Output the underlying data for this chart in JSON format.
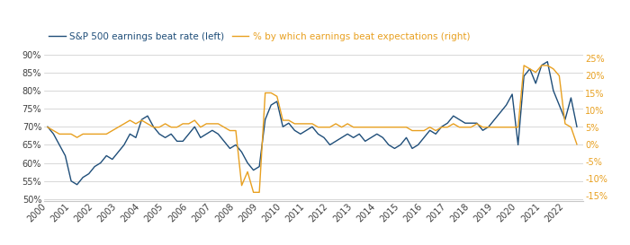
{
  "legend_blue": "S&P 500 earnings beat rate (left)",
  "legend_orange": "% by which earnings beat expectations (right)",
  "blue_color": "#1f4e79",
  "orange_color": "#e8a020",
  "left_ylim": [
    0.495,
    0.915
  ],
  "right_ylim": [
    -0.165,
    0.278
  ],
  "left_yticks": [
    0.5,
    0.55,
    0.6,
    0.65,
    0.7,
    0.75,
    0.8,
    0.85,
    0.9
  ],
  "right_yticks": [
    -0.15,
    -0.1,
    -0.05,
    0.0,
    0.05,
    0.1,
    0.15,
    0.2,
    0.25
  ],
  "years": [
    2000,
    2001,
    2002,
    2003,
    2004,
    2005,
    2006,
    2007,
    2008,
    2009,
    2010,
    2011,
    2012,
    2013,
    2014,
    2015,
    2016,
    2017,
    2018,
    2019,
    2020,
    2021,
    2022
  ],
  "blue_data_x": [
    2000.0,
    2000.25,
    2000.5,
    2000.75,
    2001.0,
    2001.25,
    2001.5,
    2001.75,
    2002.0,
    2002.25,
    2002.5,
    2002.75,
    2003.0,
    2003.25,
    2003.5,
    2003.75,
    2004.0,
    2004.25,
    2004.5,
    2004.75,
    2005.0,
    2005.25,
    2005.5,
    2005.75,
    2006.0,
    2006.25,
    2006.5,
    2006.75,
    2007.0,
    2007.25,
    2007.5,
    2007.75,
    2008.0,
    2008.25,
    2008.5,
    2008.75,
    2009.0,
    2009.25,
    2009.5,
    2009.75,
    2010.0,
    2010.25,
    2010.5,
    2010.75,
    2011.0,
    2011.25,
    2011.5,
    2011.75,
    2012.0,
    2012.25,
    2012.5,
    2012.75,
    2013.0,
    2013.25,
    2013.5,
    2013.75,
    2014.0,
    2014.25,
    2014.5,
    2014.75,
    2015.0,
    2015.25,
    2015.5,
    2015.75,
    2016.0,
    2016.25,
    2016.5,
    2016.75,
    2017.0,
    2017.25,
    2017.5,
    2017.75,
    2018.0,
    2018.25,
    2018.5,
    2018.75,
    2019.0,
    2019.25,
    2019.5,
    2019.75,
    2020.0,
    2020.25,
    2020.5,
    2020.75,
    2021.0,
    2021.25,
    2021.5,
    2021.75,
    2022.0,
    2022.25,
    2022.5
  ],
  "blue_data_y": [
    0.7,
    0.68,
    0.65,
    0.62,
    0.55,
    0.54,
    0.56,
    0.57,
    0.59,
    0.6,
    0.62,
    0.61,
    0.63,
    0.65,
    0.68,
    0.67,
    0.72,
    0.73,
    0.7,
    0.68,
    0.67,
    0.68,
    0.66,
    0.66,
    0.68,
    0.7,
    0.67,
    0.68,
    0.69,
    0.68,
    0.66,
    0.64,
    0.65,
    0.63,
    0.6,
    0.58,
    0.59,
    0.72,
    0.76,
    0.77,
    0.7,
    0.71,
    0.69,
    0.68,
    0.69,
    0.7,
    0.68,
    0.67,
    0.65,
    0.66,
    0.67,
    0.68,
    0.67,
    0.68,
    0.66,
    0.67,
    0.68,
    0.67,
    0.65,
    0.64,
    0.65,
    0.67,
    0.64,
    0.65,
    0.67,
    0.69,
    0.68,
    0.7,
    0.71,
    0.73,
    0.72,
    0.71,
    0.71,
    0.71,
    0.69,
    0.7,
    0.72,
    0.74,
    0.76,
    0.79,
    0.65,
    0.84,
    0.86,
    0.82,
    0.87,
    0.88,
    0.8,
    0.76,
    0.72,
    0.78,
    0.7
  ],
  "orange_data_x": [
    2000.0,
    2000.25,
    2000.5,
    2000.75,
    2001.0,
    2001.25,
    2001.5,
    2001.75,
    2002.0,
    2002.25,
    2002.5,
    2002.75,
    2003.0,
    2003.25,
    2003.5,
    2003.75,
    2004.0,
    2004.25,
    2004.5,
    2004.75,
    2005.0,
    2005.25,
    2005.5,
    2005.75,
    2006.0,
    2006.25,
    2006.5,
    2006.75,
    2007.0,
    2007.25,
    2007.5,
    2007.75,
    2008.0,
    2008.25,
    2008.5,
    2008.75,
    2009.0,
    2009.25,
    2009.5,
    2009.75,
    2010.0,
    2010.25,
    2010.5,
    2010.75,
    2011.0,
    2011.25,
    2011.5,
    2011.75,
    2012.0,
    2012.25,
    2012.5,
    2012.75,
    2013.0,
    2013.25,
    2013.5,
    2013.75,
    2014.0,
    2014.25,
    2014.5,
    2014.75,
    2015.0,
    2015.25,
    2015.5,
    2015.75,
    2016.0,
    2016.25,
    2016.5,
    2016.75,
    2017.0,
    2017.25,
    2017.5,
    2017.75,
    2018.0,
    2018.25,
    2018.5,
    2018.75,
    2019.0,
    2019.25,
    2019.5,
    2019.75,
    2020.0,
    2020.25,
    2020.5,
    2020.75,
    2021.0,
    2021.25,
    2021.5,
    2021.75,
    2022.0,
    2022.25,
    2022.5
  ],
  "orange_data_y": [
    0.05,
    0.04,
    0.03,
    0.03,
    0.03,
    0.02,
    0.03,
    0.03,
    0.03,
    0.03,
    0.03,
    0.04,
    0.05,
    0.06,
    0.07,
    0.06,
    0.07,
    0.06,
    0.05,
    0.05,
    0.06,
    0.05,
    0.05,
    0.06,
    0.06,
    0.07,
    0.05,
    0.06,
    0.06,
    0.06,
    0.05,
    0.04,
    0.04,
    -0.12,
    -0.08,
    -0.14,
    -0.14,
    0.15,
    0.15,
    0.14,
    0.07,
    0.07,
    0.06,
    0.06,
    0.06,
    0.06,
    0.05,
    0.05,
    0.05,
    0.06,
    0.05,
    0.06,
    0.05,
    0.05,
    0.05,
    0.05,
    0.05,
    0.05,
    0.05,
    0.05,
    0.05,
    0.05,
    0.04,
    0.04,
    0.04,
    0.05,
    0.04,
    0.05,
    0.05,
    0.06,
    0.05,
    0.05,
    0.05,
    0.06,
    0.05,
    0.05,
    0.05,
    0.05,
    0.05,
    0.05,
    0.05,
    0.23,
    0.22,
    0.21,
    0.23,
    0.23,
    0.22,
    0.2,
    0.06,
    0.05,
    0.0
  ],
  "background_color": "#ffffff",
  "grid_color": "#c8c8c8",
  "text_color": "#404040",
  "fontsize_tick": 7,
  "fontsize_legend": 7.5,
  "xlim": [
    1999.85,
    2022.75
  ]
}
